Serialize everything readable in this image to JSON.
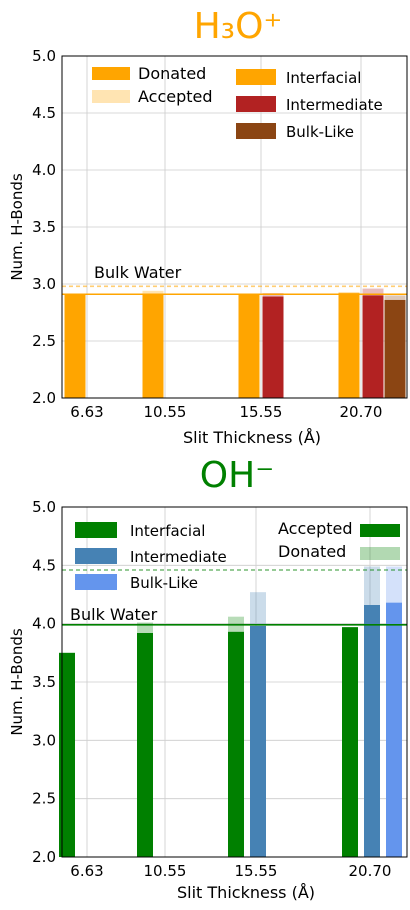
{
  "chart_data": [
    {
      "type": "bar",
      "title": "H₃O⁺",
      "title_color": "#ffa500",
      "xlabel": "Slit Thickness (Å)",
      "ylabel": "Num. H-Bonds",
      "categories": [
        "6.63",
        "10.55",
        "15.55",
        "20.70"
      ],
      "ylim": [
        2.0,
        5.0
      ],
      "yticks": [
        "2.0",
        "2.5",
        "3.0",
        "3.5",
        "4.0",
        "4.5",
        "5.0"
      ],
      "grid": true,
      "series": [
        {
          "name": "Interfacial",
          "color": "#ffa500",
          "donated": [
            2.91,
            2.91,
            2.91,
            2.92
          ],
          "accepted": [
            2.91,
            2.94,
            2.91,
            2.93
          ]
        },
        {
          "name": "Intermediate",
          "color": "#b22222",
          "donated": [
            null,
            null,
            2.89,
            2.9
          ],
          "accepted": [
            null,
            null,
            2.92,
            2.96
          ]
        },
        {
          "name": "Bulk-Like",
          "color": "#8b4513",
          "donated": [
            null,
            null,
            null,
            2.86
          ],
          "accepted": [
            null,
            null,
            null,
            2.9
          ]
        }
      ],
      "reference_lines": [
        {
          "label": "Bulk Water",
          "value": 2.91,
          "color": "#ffa500",
          "style": "solid"
        },
        {
          "label": "",
          "value": 2.98,
          "color": "#ffa500",
          "style": "dashed"
        }
      ],
      "legend_type": {
        "entries": [
          "Donated",
          "Accepted"
        ],
        "placement": "top-left"
      },
      "legend_series": {
        "entries": [
          "Interfacial",
          "Intermediate",
          "Bulk-Like"
        ],
        "placement": "top-right"
      }
    },
    {
      "type": "bar",
      "title": "OH⁻",
      "title_color": "#008000",
      "xlabel": "Slit Thickness (Å)",
      "ylabel": "Num. H-Bonds",
      "categories": [
        "6.63",
        "10.55",
        "15.55",
        "20.70"
      ],
      "ylim": [
        2.0,
        5.0
      ],
      "yticks": [
        "2.0",
        "2.5",
        "3.0",
        "3.5",
        "4.0",
        "4.5",
        "5.0"
      ],
      "grid": true,
      "series": [
        {
          "name": "Interfacial",
          "color": "#008000",
          "accepted": [
            3.75,
            3.92,
            3.93,
            3.97
          ],
          "donated": [
            3.75,
            4.01,
            4.06,
            3.97
          ]
        },
        {
          "name": "Intermediate",
          "color": "#4682b4",
          "accepted": [
            null,
            null,
            3.98,
            4.16
          ],
          "donated": [
            null,
            null,
            4.27,
            4.49
          ]
        },
        {
          "name": "Bulk-Like",
          "color": "#6495ed",
          "accepted": [
            null,
            null,
            null,
            4.18
          ],
          "donated": [
            null,
            null,
            null,
            4.49
          ]
        }
      ],
      "reference_lines": [
        {
          "label": "Bulk Water",
          "value": 3.99,
          "color": "#008000",
          "style": "solid"
        },
        {
          "label": "",
          "value": 4.46,
          "color": "#008000",
          "style": "dashed"
        }
      ],
      "legend_type": {
        "entries": [
          "Accepted",
          "Donated"
        ],
        "placement": "top-right"
      },
      "legend_series": {
        "entries": [
          "Interfacial",
          "Intermediate",
          "Bulk-Like"
        ],
        "placement": "top-left"
      }
    }
  ]
}
